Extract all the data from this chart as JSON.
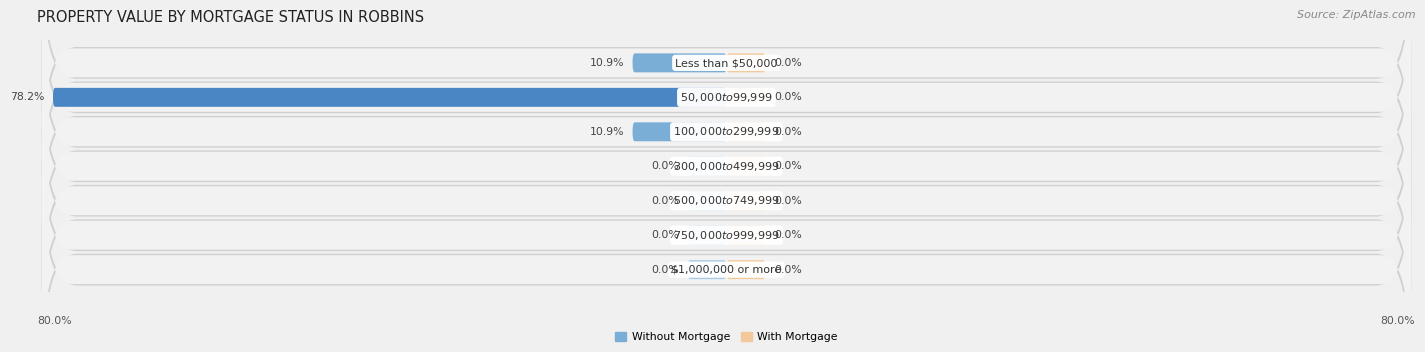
{
  "title": "PROPERTY VALUE BY MORTGAGE STATUS IN ROBBINS",
  "source": "Source: ZipAtlas.com",
  "categories": [
    "Less than $50,000",
    "$50,000 to $99,999",
    "$100,000 to $299,999",
    "$300,000 to $499,999",
    "$500,000 to $749,999",
    "$750,000 to $999,999",
    "$1,000,000 or more"
  ],
  "without_mortgage": [
    10.9,
    78.2,
    10.9,
    0.0,
    0.0,
    0.0,
    0.0
  ],
  "with_mortgage": [
    0.0,
    0.0,
    0.0,
    0.0,
    0.0,
    0.0,
    0.0
  ],
  "xlim": [
    -80,
    80
  ],
  "left_axis_label": "80.0%",
  "right_axis_label": "80.0%",
  "without_mortgage_color_light": "#a8c8e8",
  "without_mortgage_color_mid": "#7aaed6",
  "without_mortgage_color_dark": "#4a86c4",
  "with_mortgage_color": "#f2c99a",
  "row_bg_outer": "#d8d8d8",
  "row_bg_inner": "#f0f0f0",
  "title_color": "#222222",
  "value_color": "#444444",
  "cat_label_color": "#333333",
  "category_fontsize": 8.0,
  "value_fontsize": 7.8,
  "title_fontsize": 10.5,
  "source_fontsize": 8.0,
  "stub_size": 4.5,
  "bar_height": 0.55
}
